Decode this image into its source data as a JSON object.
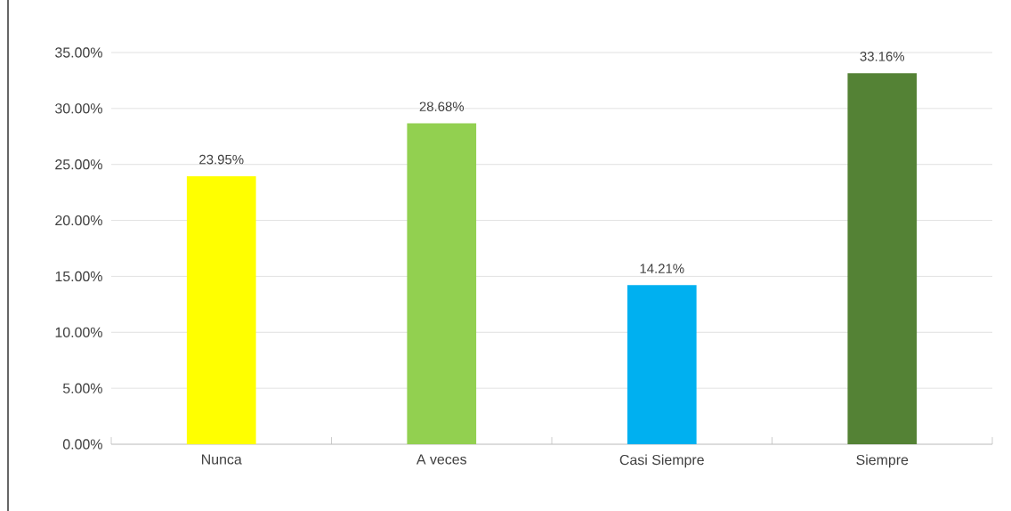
{
  "chart_data": {
    "type": "bar",
    "categories": [
      "Nunca",
      "A veces",
      "Casi Siempre",
      "Siempre"
    ],
    "values": [
      23.95,
      28.68,
      14.21,
      33.16
    ],
    "colors": [
      "#ffff00",
      "#92d050",
      "#00b0f0",
      "#548235"
    ],
    "value_labels": [
      "23.95%",
      "28.68%",
      "14.21%",
      "33.16%"
    ],
    "ylim": [
      0,
      35
    ],
    "yticks": [
      {
        "value": 0,
        "label": "0.00%"
      },
      {
        "value": 5,
        "label": "5.00%"
      },
      {
        "value": 10,
        "label": "10.00%"
      },
      {
        "value": 15,
        "label": "15.00%"
      },
      {
        "value": 20,
        "label": "20.00%"
      },
      {
        "value": 25,
        "label": "25.00%"
      },
      {
        "value": 30,
        "label": "30.00%"
      },
      {
        "value": 35,
        "label": "35.00%"
      }
    ],
    "grid": "y"
  }
}
